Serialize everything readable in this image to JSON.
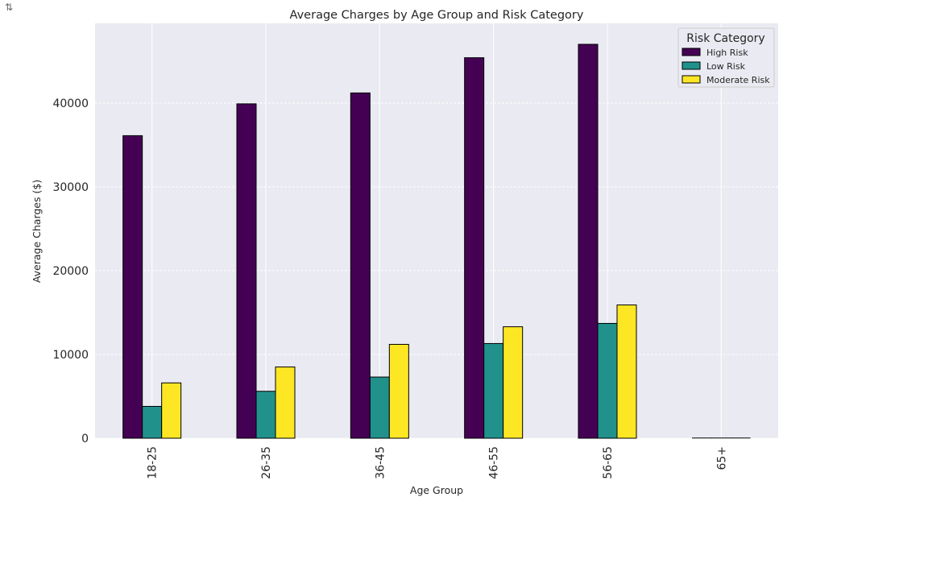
{
  "output_icon": "output-toggle-icon",
  "chart_data": {
    "type": "bar",
    "title": "Average Charges by Age Group and Risk Category",
    "xlabel": "Age Group",
    "ylabel": "Average Charges ($)",
    "categories": [
      "18-25",
      "26-35",
      "36-45",
      "46-55",
      "56-65",
      "65+"
    ],
    "ylim": [
      0,
      49500
    ],
    "yticks": [
      0,
      10000,
      20000,
      30000,
      40000
    ],
    "grid": true,
    "legend": {
      "title": "Risk Category",
      "position": "top-right"
    },
    "series": [
      {
        "name": "High Risk",
        "color": "#440154",
        "values": [
          36100,
          39900,
          41200,
          45400,
          47000,
          0
        ]
      },
      {
        "name": "Low Risk",
        "color": "#21918c",
        "values": [
          3800,
          5600,
          7300,
          11300,
          13700,
          0
        ]
      },
      {
        "name": "Moderate Risk",
        "color": "#fde725",
        "values": [
          6600,
          8500,
          11200,
          13300,
          15900,
          0
        ]
      }
    ]
  }
}
